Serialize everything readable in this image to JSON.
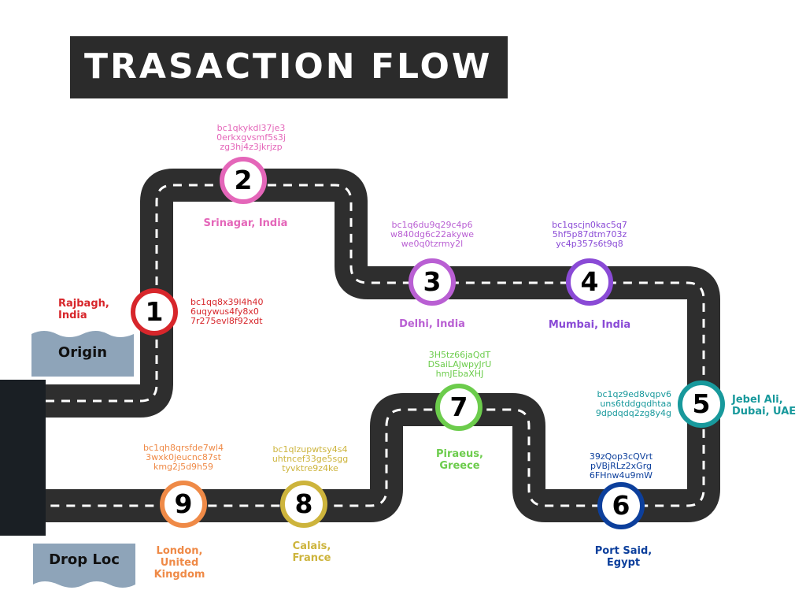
{
  "title": {
    "word1": "TRASACTION",
    "word2": "FLOW"
  },
  "signs": {
    "origin": "Origin",
    "drop": "Drop Loc"
  },
  "colors": {
    "road": "#2e2e2e",
    "dash": "#ffffff",
    "title_bg": "#2b2b2b",
    "sign": "#8ea4b9",
    "dark_block": "#1a1f24"
  },
  "stops": [
    {
      "number": "1",
      "place": "Rajbagh,\nIndia",
      "address": "bc1qq8x39l4h40\n6uqywus4fy8x0\n7r275evl8f92xdt",
      "color": "#d7262b"
    },
    {
      "number": "2",
      "place": "Srinagar, India",
      "address": "bc1qkykdl37je3\n0erkxgvsmf5s3j\nzg3hj4z3jkrjzp",
      "color": "#e466b9"
    },
    {
      "number": "3",
      "place": "Delhi, India",
      "address": "bc1q6du9q29c4p6\nw840dg6c22akywe\nwe0q0tzrmy2l",
      "color": "#b95fd3"
    },
    {
      "number": "4",
      "place": "Mumbai, India",
      "address": "bc1qscjn0kac5q7\n5hf5p87dtm703z\nyc4p357s6t9q8",
      "color": "#8a4ad6"
    },
    {
      "number": "5",
      "place": "Jebel Ali,\nDubai, UAE",
      "address": "bc1qz9ed8vqpv6\nuns6tddgqdhtaa\n9dpdqdq2zg8y4g",
      "color": "#18999c"
    },
    {
      "number": "6",
      "place": "Port Said,\nEgypt",
      "address": "39zQop3cQVrt\npVBjRLz2xGrg\n6FHnw4u9mW",
      "color": "#0c3f9c"
    },
    {
      "number": "7",
      "place": "Piraeus,\nGreece",
      "address": "3H5tz66jaQdT\nDSaiLAJwpyJrU\nhmJEbaXHJ",
      "color": "#6ccc4c"
    },
    {
      "number": "8",
      "place": "Calais,\nFrance",
      "address": "bc1qlzupwtsy4s4\nuhtncef33ge5sgg\ntyvktre9z4ke",
      "color": "#cdb43c"
    },
    {
      "number": "9",
      "place": "London,\nUnited\nKingdom",
      "address": "bc1qh8qrsfde7wl4\n3wxk0jeucnc87st\nkmg2j5d9h59",
      "color": "#ef8a47"
    }
  ]
}
